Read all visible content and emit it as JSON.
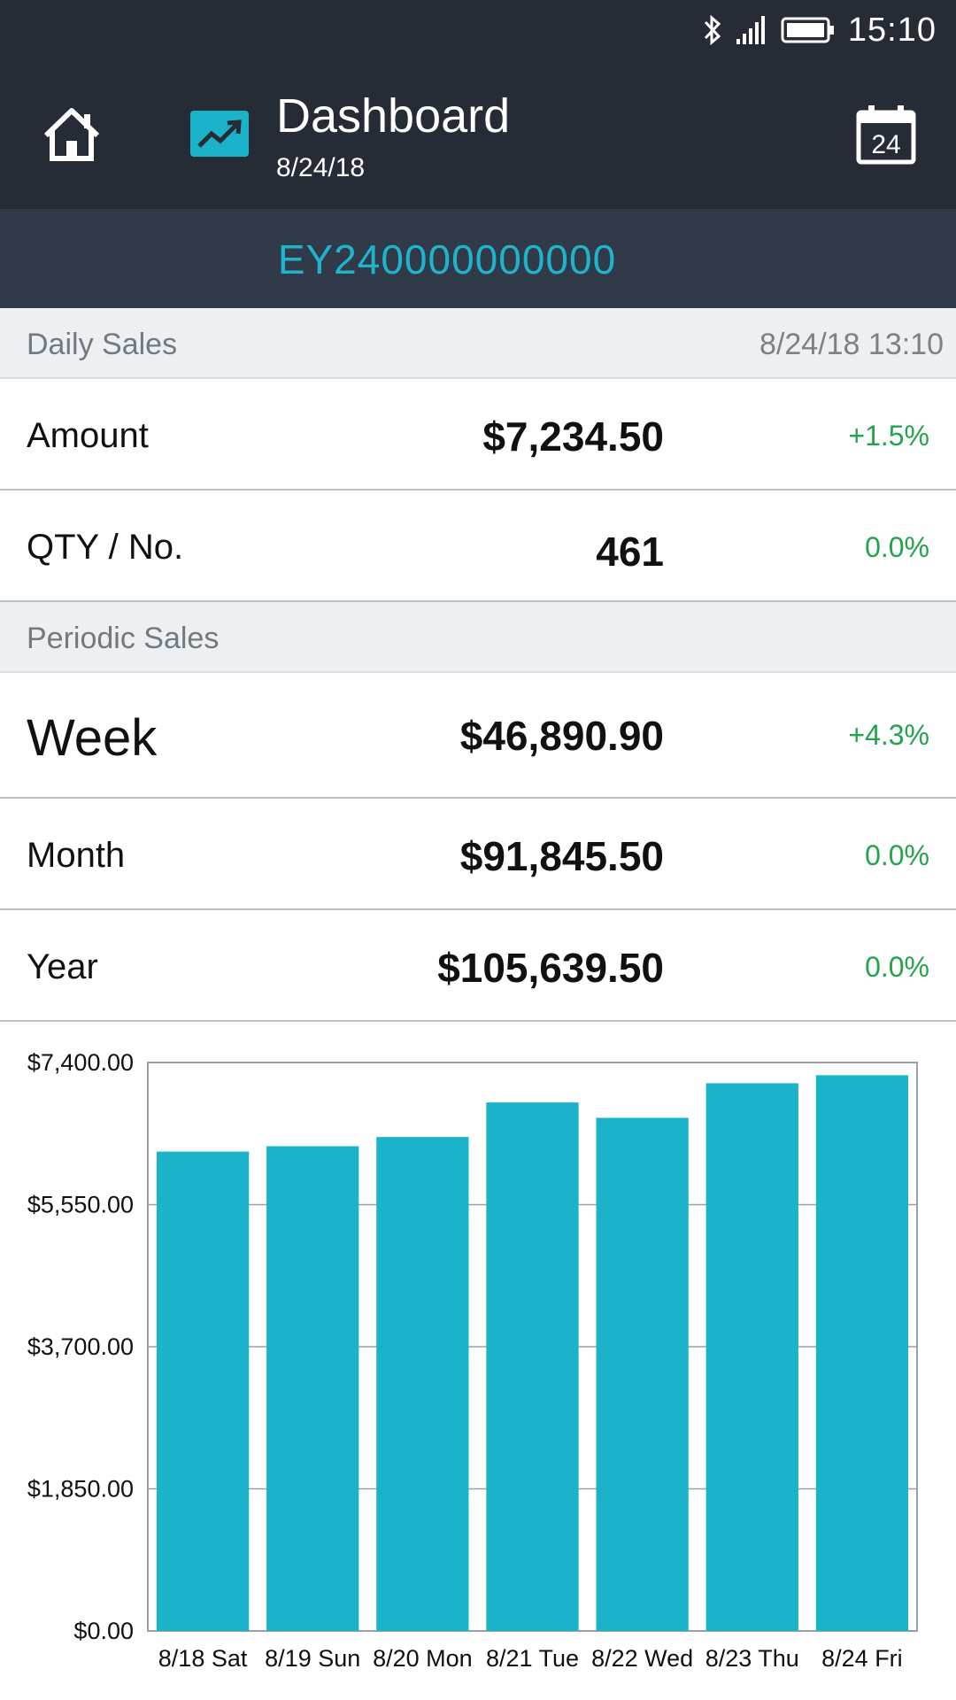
{
  "status_bar": {
    "time": "15:10",
    "icons": [
      "bluetooth-icon",
      "signal-icon",
      "battery-icon"
    ]
  },
  "header": {
    "title": "Dashboard",
    "date": "8/24/18",
    "calendar_day": "24"
  },
  "store": {
    "id": "EY240000000000"
  },
  "daily_sales": {
    "title": "Daily Sales",
    "timestamp": "8/24/18 13:10",
    "rows": [
      {
        "label": "Amount",
        "value": "$7,234.50",
        "change": "+1.5%"
      },
      {
        "label": "QTY / No.",
        "value": "461",
        "change": "0.0%"
      }
    ]
  },
  "periodic_sales": {
    "title": "Periodic Sales",
    "rows": [
      {
        "label": "Week",
        "value": "$46,890.90",
        "change": "+4.3%"
      },
      {
        "label": "Month",
        "value": "$91,845.50",
        "change": "0.0%"
      },
      {
        "label": "Year",
        "value": "$105,639.50",
        "change": "0.0%"
      }
    ]
  },
  "colors": {
    "bar": "#1bb3c9",
    "store_id": "#1eb5cc",
    "positive": "#22a34c",
    "app_bar": "#262c36",
    "store_bar": "#303a48"
  },
  "chart_data": {
    "type": "bar",
    "categories": [
      "8/18 Sat",
      "8/19 Sun",
      "8/20 Mon",
      "8/21 Tue",
      "8/22 Wed",
      "8/23 Thu",
      "8/24 Fri"
    ],
    "values": [
      6240,
      6310,
      6430,
      6880,
      6680,
      7130,
      7234.5
    ],
    "ylim": [
      0,
      7400
    ],
    "yticks": [
      0,
      1850,
      3700,
      5550,
      7400
    ],
    "ytick_labels": [
      "$0.00",
      "$1,850.00",
      "$3,700.00",
      "$5,550.00",
      "$7,400.00"
    ],
    "grid": true
  }
}
